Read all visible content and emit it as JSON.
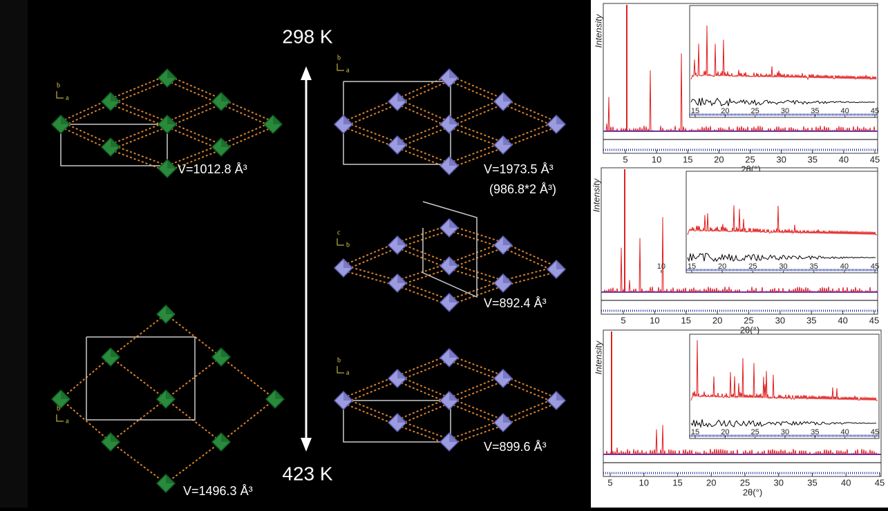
{
  "temperatures": {
    "top": "298 K",
    "bottom": "423 K"
  },
  "structures": [
    {
      "axes": [
        "b",
        "a"
      ],
      "volume": "V=1012.8 Å³"
    },
    {
      "axes": [
        "b",
        "a"
      ],
      "volume": "V=1496.3 Å³"
    },
    {
      "axes": [
        "b",
        "a"
      ],
      "volume": "V=1973.5 Å³",
      "note": "(986.8*2 Å³)"
    },
    {
      "axes": [
        "c",
        "b"
      ],
      "volume": "V=892.4 Å³"
    },
    {
      "axes": [
        "b",
        "a"
      ],
      "volume": "V=899.6 Å³"
    }
  ],
  "patterns": [
    {
      "y_label": "Intensity",
      "x_label": "2θ(°)",
      "xticks": [
        5,
        10,
        15,
        20,
        25,
        30,
        35,
        40,
        45
      ],
      "inset_xticks": [
        15,
        20,
        25,
        30,
        35,
        40,
        45
      ]
    },
    {
      "y_label": "Intensity",
      "x_label": "2θ(°)",
      "xticks": [
        5,
        10,
        15,
        20,
        25,
        30,
        35,
        40,
        45
      ],
      "inset_xticks": [
        10,
        15,
        20,
        25,
        30,
        35,
        40,
        45
      ]
    },
    {
      "y_label": "Intensity",
      "x_label": "2θ(°)",
      "xticks": [
        5,
        10,
        15,
        20,
        25,
        30,
        35,
        40,
        45
      ],
      "inset_xticks": [
        15,
        20,
        25,
        30,
        35,
        40,
        45
      ]
    }
  ]
}
